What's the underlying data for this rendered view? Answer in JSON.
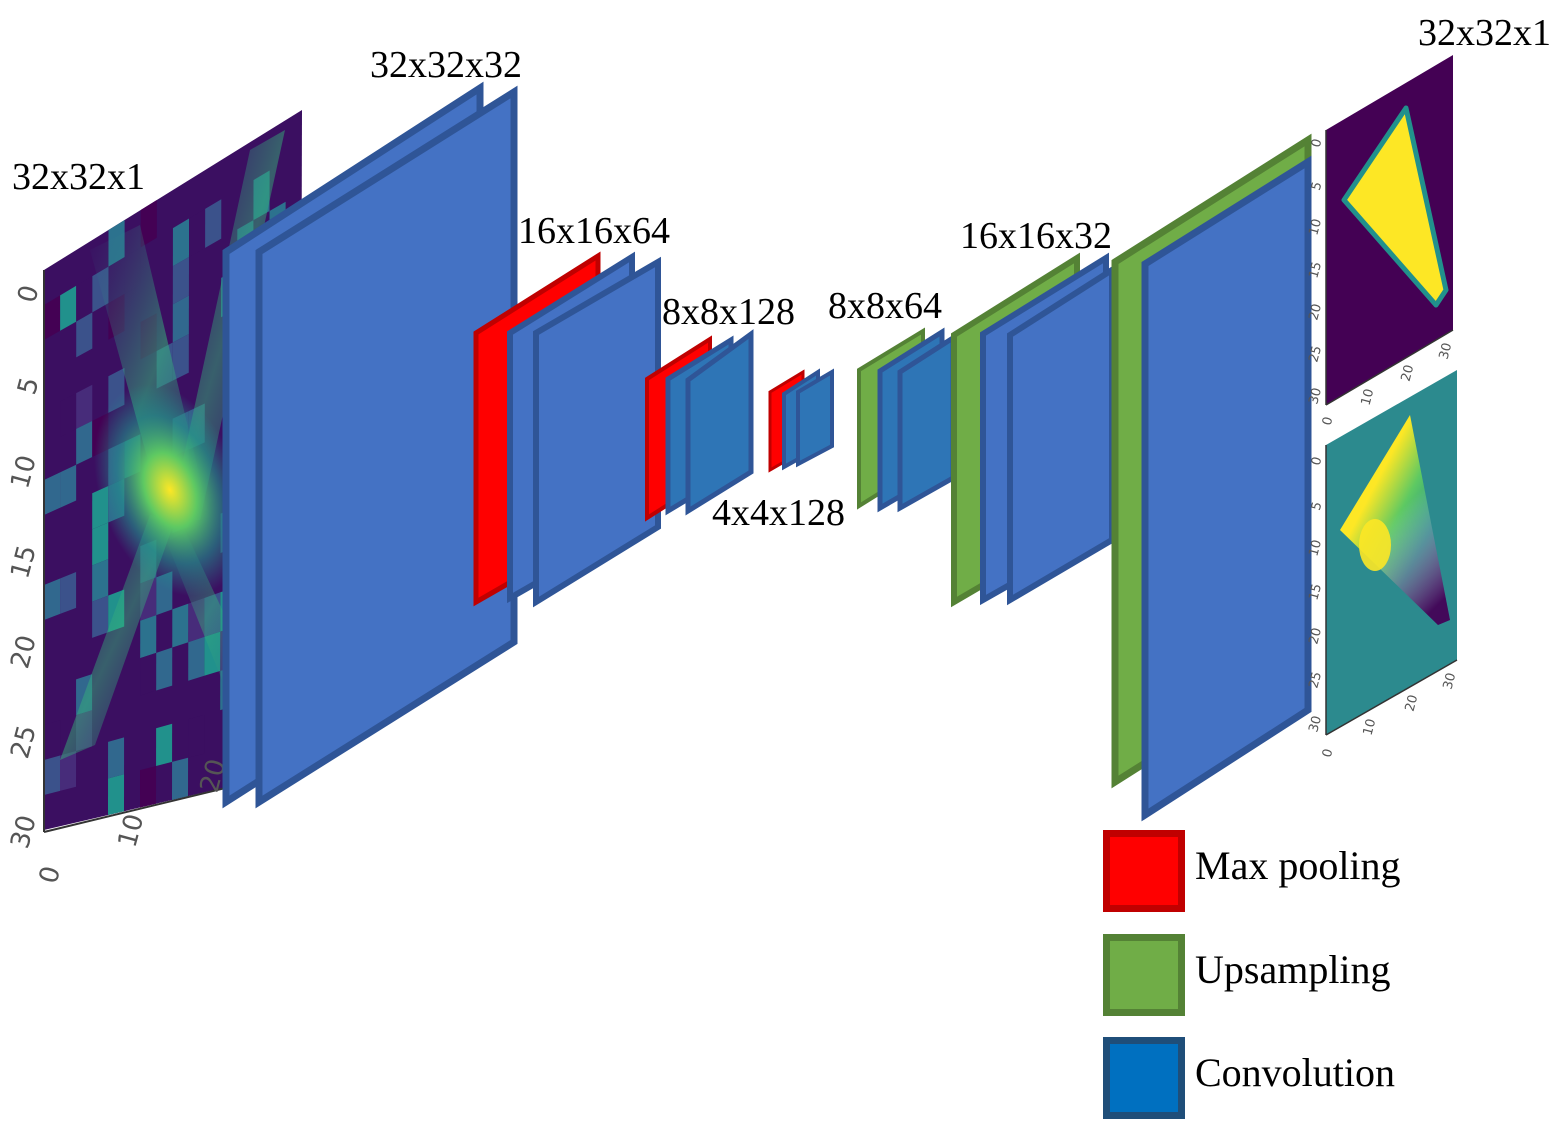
{
  "labels": {
    "input": "32x32x1",
    "enc1": "32x32x32",
    "enc2": "16x16x64",
    "enc3": "8x8x128",
    "bottleneck": "4x4x128",
    "dec1": "8x8x64",
    "dec2": "16x16x32",
    "output": "32x32x1"
  },
  "legend": [
    {
      "label": "Max pooling",
      "fill": "#ff0000",
      "border": "#c00000"
    },
    {
      "label": "Upsampling",
      "fill": "#70ad47",
      "border": "#548235"
    },
    {
      "label": "Convolution",
      "fill": "#0070c0",
      "border": "#1f4e79"
    }
  ],
  "colors": {
    "conv_large": "#4472c4",
    "conv_small": "#2e75b6",
    "conv_border": "#2f5597",
    "pool": "#ff0000",
    "pool_border": "#c00000",
    "upsample": "#70ad47",
    "upsample_border": "#548235"
  },
  "plots": {
    "input": {
      "yticks": [
        "0",
        "5",
        "10",
        "15",
        "20",
        "25",
        "30"
      ],
      "xticks": [
        "0",
        "10",
        "20"
      ]
    },
    "output_top": {
      "yticks": [
        "0",
        "5",
        "10",
        "15",
        "20",
        "25",
        "30"
      ],
      "xticks": [
        "0",
        "10",
        "20",
        "30"
      ]
    },
    "output_bottom": {
      "yticks": [
        "0",
        "5",
        "10",
        "15",
        "20",
        "25",
        "30"
      ],
      "xticks": [
        "0",
        "10",
        "20",
        "30"
      ]
    }
  }
}
